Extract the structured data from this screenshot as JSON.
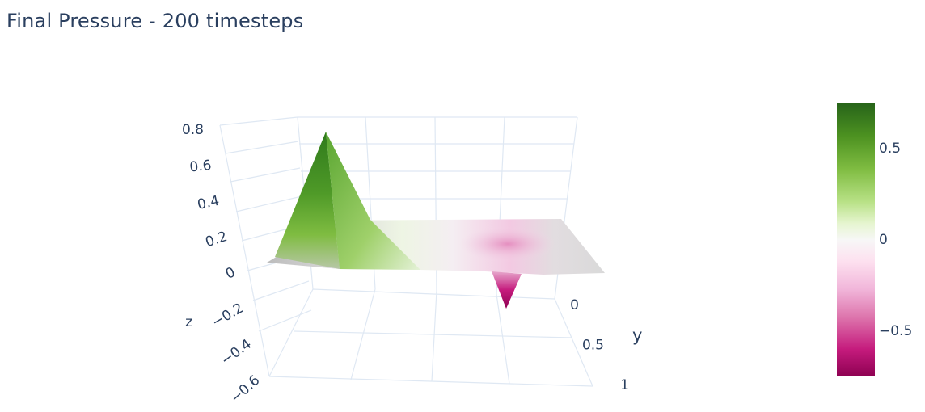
{
  "title": "Final Pressure - 200 timesteps",
  "chart_data": {
    "type": "surface",
    "title": "Final Pressure - 200 timesteps",
    "axes": {
      "z": {
        "label": "z",
        "range": [
          -0.6,
          0.8
        ],
        "ticks": [
          "0.8",
          "0.6",
          "0.4",
          "0.2",
          "0",
          "−0.2",
          "−0.4",
          "−0.6"
        ]
      },
      "y": {
        "label": "y",
        "range": [
          0,
          1
        ],
        "ticks": [
          "0",
          "0.5",
          "1"
        ]
      }
    },
    "surface": {
      "peak_max": {
        "x": 0.2,
        "y": 0.2,
        "z": 0.78
      },
      "trough_min": {
        "x": 0.75,
        "y": 0.75,
        "z": -0.42
      },
      "baseline": 0
    },
    "colorscale": {
      "name": "PiYG",
      "range": [
        -0.75,
        0.75
      ],
      "ticks": [
        "0.5",
        "0",
        "−0.5"
      ],
      "colors": [
        "#8e0152",
        "#c51b7d",
        "#de77ae",
        "#f1b6da",
        "#fde0ef",
        "#f7f7f7",
        "#e6f5d0",
        "#b8e186",
        "#7fbc41",
        "#4d9221",
        "#276419"
      ]
    }
  }
}
